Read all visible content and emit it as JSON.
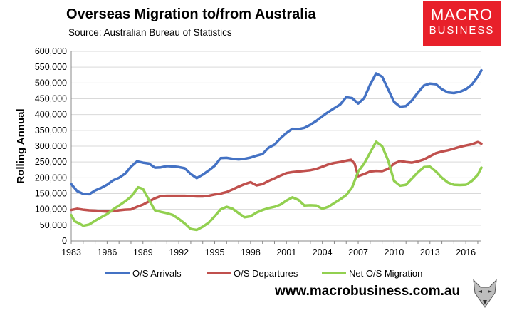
{
  "header": {
    "title": "Overseas Migration to/from Australia",
    "subtitle": "Source: Australian Bureau of Statistics"
  },
  "brand": {
    "line1": "MACRO",
    "line2": "BUSINESS",
    "color": "#e8202a"
  },
  "footer": {
    "website": "www.macrobusiness.com.au"
  },
  "chart_data": {
    "type": "line",
    "title": "Overseas Migration to/from Australia",
    "xlabel": "",
    "ylabel": "Rolling Annual",
    "xlim": [
      1983,
      2017.3
    ],
    "ylim": [
      0,
      600000
    ],
    "x_ticks": [
      1983,
      1986,
      1989,
      1992,
      1995,
      1998,
      2001,
      2004,
      2007,
      2010,
      2013,
      2016
    ],
    "y_ticks": [
      0,
      50000,
      100000,
      150000,
      200000,
      250000,
      300000,
      350000,
      400000,
      450000,
      500000,
      550000,
      600000
    ],
    "y_tick_labels": [
      "0",
      "50,000",
      "100,000",
      "150,000",
      "200,000",
      "250,000",
      "300,000",
      "350,000",
      "400,000",
      "450,000",
      "500,000",
      "550,000",
      "600,000"
    ],
    "grid": true,
    "legend_position": "bottom",
    "series": [
      {
        "name": "O/S Arrivals",
        "color": "#4472c4",
        "points": [
          [
            1983,
            180000
          ],
          [
            1983.5,
            158000
          ],
          [
            1984,
            149000
          ],
          [
            1984.5,
            148000
          ],
          [
            1985,
            160000
          ],
          [
            1985.5,
            168000
          ],
          [
            1986,
            178000
          ],
          [
            1986.5,
            192000
          ],
          [
            1987,
            200000
          ],
          [
            1987.5,
            213000
          ],
          [
            1988,
            235000
          ],
          [
            1988.5,
            252000
          ],
          [
            1989,
            248000
          ],
          [
            1989.5,
            245000
          ],
          [
            1990,
            232000
          ],
          [
            1990.5,
            233000
          ],
          [
            1991,
            237000
          ],
          [
            1991.5,
            236000
          ],
          [
            1992,
            234000
          ],
          [
            1992.5,
            230000
          ],
          [
            1993,
            212000
          ],
          [
            1993.5,
            199000
          ],
          [
            1994,
            210000
          ],
          [
            1994.5,
            223000
          ],
          [
            1995,
            238000
          ],
          [
            1995.5,
            262000
          ],
          [
            1996,
            263000
          ],
          [
            1996.5,
            260000
          ],
          [
            1997,
            258000
          ],
          [
            1997.5,
            260000
          ],
          [
            1998,
            264000
          ],
          [
            1998.5,
            270000
          ],
          [
            1999,
            275000
          ],
          [
            1999.5,
            295000
          ],
          [
            2000,
            305000
          ],
          [
            2000.5,
            325000
          ],
          [
            2001,
            342000
          ],
          [
            2001.5,
            355000
          ],
          [
            2002,
            354000
          ],
          [
            2002.5,
            358000
          ],
          [
            2003,
            368000
          ],
          [
            2003.5,
            380000
          ],
          [
            2004,
            395000
          ],
          [
            2004.5,
            408000
          ],
          [
            2005,
            420000
          ],
          [
            2005.5,
            432000
          ],
          [
            2006,
            455000
          ],
          [
            2006.5,
            452000
          ],
          [
            2007,
            435000
          ],
          [
            2007.5,
            452000
          ],
          [
            2008,
            495000
          ],
          [
            2008.5,
            530000
          ],
          [
            2009,
            520000
          ],
          [
            2009.5,
            480000
          ],
          [
            2010,
            440000
          ],
          [
            2010.5,
            425000
          ],
          [
            2011,
            427000
          ],
          [
            2011.5,
            445000
          ],
          [
            2012,
            470000
          ],
          [
            2012.5,
            492000
          ],
          [
            2013,
            498000
          ],
          [
            2013.5,
            496000
          ],
          [
            2014,
            480000
          ],
          [
            2014.5,
            470000
          ],
          [
            2015,
            468000
          ],
          [
            2015.5,
            472000
          ],
          [
            2016,
            480000
          ],
          [
            2016.5,
            495000
          ],
          [
            2017,
            520000
          ],
          [
            2017.3,
            540000
          ]
        ]
      },
      {
        "name": "O/S Departures",
        "color": "#c0504d",
        "points": [
          [
            1983,
            98000
          ],
          [
            1983.5,
            102000
          ],
          [
            1984,
            99000
          ],
          [
            1984.5,
            97000
          ],
          [
            1985,
            96000
          ],
          [
            1985.5,
            94000
          ],
          [
            1986,
            93000
          ],
          [
            1986.5,
            94000
          ],
          [
            1987,
            97000
          ],
          [
            1987.5,
            99000
          ],
          [
            1988,
            100000
          ],
          [
            1988.5,
            108000
          ],
          [
            1989,
            115000
          ],
          [
            1989.5,
            125000
          ],
          [
            1990,
            135000
          ],
          [
            1990.5,
            142000
          ],
          [
            1991,
            143000
          ],
          [
            1991.5,
            143000
          ],
          [
            1992,
            143000
          ],
          [
            1992.5,
            143000
          ],
          [
            1993,
            142000
          ],
          [
            1993.5,
            141000
          ],
          [
            1994,
            141000
          ],
          [
            1994.5,
            143000
          ],
          [
            1995,
            147000
          ],
          [
            1995.5,
            150000
          ],
          [
            1996,
            155000
          ],
          [
            1996.5,
            163000
          ],
          [
            1997,
            172000
          ],
          [
            1997.5,
            180000
          ],
          [
            1998,
            186000
          ],
          [
            1998.5,
            176000
          ],
          [
            1999,
            180000
          ],
          [
            1999.5,
            190000
          ],
          [
            2000,
            198000
          ],
          [
            2000.5,
            207000
          ],
          [
            2001,
            215000
          ],
          [
            2001.5,
            218000
          ],
          [
            2002,
            220000
          ],
          [
            2002.5,
            222000
          ],
          [
            2003,
            224000
          ],
          [
            2003.5,
            228000
          ],
          [
            2004,
            235000
          ],
          [
            2004.5,
            242000
          ],
          [
            2005,
            247000
          ],
          [
            2005.5,
            250000
          ],
          [
            2006,
            254000
          ],
          [
            2006.4,
            257000
          ],
          [
            2006.7,
            245000
          ],
          [
            2007,
            205000
          ],
          [
            2007.5,
            212000
          ],
          [
            2008,
            220000
          ],
          [
            2008.5,
            222000
          ],
          [
            2009,
            221000
          ],
          [
            2009.5,
            228000
          ],
          [
            2010,
            245000
          ],
          [
            2010.5,
            253000
          ],
          [
            2011,
            250000
          ],
          [
            2011.5,
            248000
          ],
          [
            2012,
            252000
          ],
          [
            2012.5,
            258000
          ],
          [
            2013,
            268000
          ],
          [
            2013.5,
            278000
          ],
          [
            2014,
            283000
          ],
          [
            2014.5,
            287000
          ],
          [
            2015,
            292000
          ],
          [
            2015.5,
            298000
          ],
          [
            2016,
            302000
          ],
          [
            2016.5,
            306000
          ],
          [
            2017,
            313000
          ],
          [
            2017.3,
            308000
          ]
        ]
      },
      {
        "name": "Net O/S Migration",
        "color": "#92d050",
        "points": [
          [
            1983,
            82000
          ],
          [
            1983.3,
            62000
          ],
          [
            1983.7,
            55000
          ],
          [
            1984,
            48000
          ],
          [
            1984.5,
            52000
          ],
          [
            1985,
            64000
          ],
          [
            1985.5,
            75000
          ],
          [
            1986,
            85000
          ],
          [
            1986.5,
            100000
          ],
          [
            1987,
            112000
          ],
          [
            1987.5,
            125000
          ],
          [
            1988,
            140000
          ],
          [
            1988.3,
            155000
          ],
          [
            1988.6,
            170000
          ],
          [
            1989,
            165000
          ],
          [
            1989.5,
            130000
          ],
          [
            1990,
            97000
          ],
          [
            1990.5,
            92000
          ],
          [
            1991,
            88000
          ],
          [
            1991.5,
            82000
          ],
          [
            1992,
            70000
          ],
          [
            1992.5,
            55000
          ],
          [
            1993,
            38000
          ],
          [
            1993.5,
            35000
          ],
          [
            1994,
            45000
          ],
          [
            1994.5,
            58000
          ],
          [
            1995,
            78000
          ],
          [
            1995.5,
            100000
          ],
          [
            1996,
            108000
          ],
          [
            1996.5,
            102000
          ],
          [
            1997,
            88000
          ],
          [
            1997.5,
            75000
          ],
          [
            1998,
            78000
          ],
          [
            1998.5,
            90000
          ],
          [
            1999,
            98000
          ],
          [
            1999.5,
            104000
          ],
          [
            2000,
            108000
          ],
          [
            2000.5,
            115000
          ],
          [
            2001,
            128000
          ],
          [
            2001.5,
            138000
          ],
          [
            2002,
            130000
          ],
          [
            2002.5,
            112000
          ],
          [
            2003,
            113000
          ],
          [
            2003.5,
            112000
          ],
          [
            2004,
            102000
          ],
          [
            2004.5,
            108000
          ],
          [
            2005,
            120000
          ],
          [
            2005.5,
            132000
          ],
          [
            2006,
            145000
          ],
          [
            2006.5,
            170000
          ],
          [
            2007,
            220000
          ],
          [
            2007.5,
            245000
          ],
          [
            2008,
            280000
          ],
          [
            2008.5,
            314000
          ],
          [
            2009,
            300000
          ],
          [
            2009.5,
            255000
          ],
          [
            2010,
            190000
          ],
          [
            2010.5,
            175000
          ],
          [
            2011,
            178000
          ],
          [
            2011.5,
            198000
          ],
          [
            2012,
            218000
          ],
          [
            2012.5,
            234000
          ],
          [
            2013,
            235000
          ],
          [
            2013.5,
            220000
          ],
          [
            2014,
            200000
          ],
          [
            2014.5,
            185000
          ],
          [
            2015,
            178000
          ],
          [
            2015.5,
            177000
          ],
          [
            2016,
            178000
          ],
          [
            2016.5,
            190000
          ],
          [
            2017,
            210000
          ],
          [
            2017.3,
            232000
          ]
        ]
      }
    ]
  }
}
